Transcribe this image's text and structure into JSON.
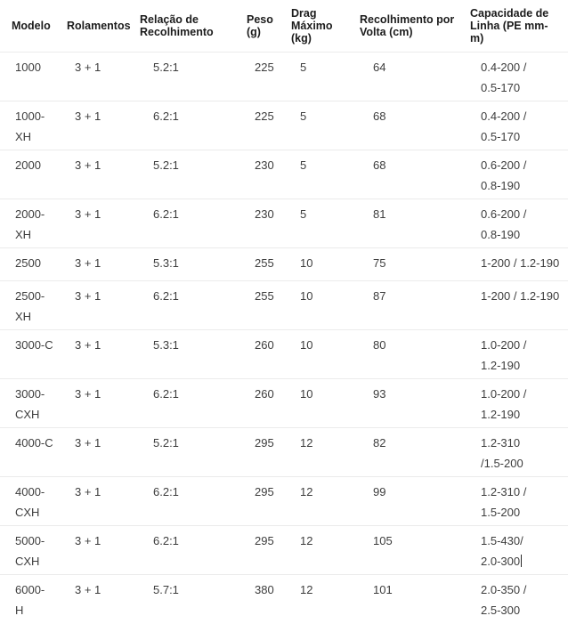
{
  "colors": {
    "background": "#ffffff",
    "row_border": "#ebebeb",
    "header_text": "#1c1c1c",
    "cell_text": "#3d3d3d",
    "text_cursor": "#2a2a2a"
  },
  "table": {
    "columns": [
      {
        "key": "model",
        "label": "Modelo"
      },
      {
        "key": "bearings",
        "label": "Rolamentos"
      },
      {
        "key": "gear_ratio",
        "label": "Relação de\nRecolhimento"
      },
      {
        "key": "weight",
        "label": "Peso\n(g)"
      },
      {
        "key": "max_drag",
        "label": "Drag\nMáximo\n(kg)"
      },
      {
        "key": "retrieve_per_turn",
        "label": "Recolhimento por\nVolta (cm)"
      },
      {
        "key": "line_capacity",
        "label": "Capacidade de\nLinha (PE mm-\nm)"
      }
    ],
    "rows": [
      {
        "model": "1000",
        "bearings": "3 + 1",
        "gear_ratio": "5.2:1",
        "weight": "225",
        "max_drag": "5",
        "retrieve_per_turn": "64",
        "line_capacity": "0.4-200 /\n0.5-170"
      },
      {
        "model": "1000-\nXH",
        "bearings": "3 + 1",
        "gear_ratio": "6.2:1",
        "weight": "225",
        "max_drag": "5",
        "retrieve_per_turn": "68",
        "line_capacity": "0.4-200 /\n0.5-170"
      },
      {
        "model": "2000",
        "bearings": "3 + 1",
        "gear_ratio": "5.2:1",
        "weight": "230",
        "max_drag": "5",
        "retrieve_per_turn": "68",
        "line_capacity": "0.6-200 /\n0.8-190"
      },
      {
        "model": "2000-\nXH",
        "bearings": "3 + 1",
        "gear_ratio": "6.2:1",
        "weight": "230",
        "max_drag": "5",
        "retrieve_per_turn": "81",
        "line_capacity": "0.6-200 /\n0.8-190"
      },
      {
        "model": "2500",
        "bearings": "3 + 1",
        "gear_ratio": "5.3:1",
        "weight": "255",
        "max_drag": "10",
        "retrieve_per_turn": "75",
        "line_capacity": "1-200 / 1.2-190",
        "compact": true
      },
      {
        "model": "2500-\nXH",
        "bearings": "3 + 1",
        "gear_ratio": "6.2:1",
        "weight": "255",
        "max_drag": "10",
        "retrieve_per_turn": "87",
        "line_capacity": "1-200 / 1.2-190"
      },
      {
        "model": "3000-C",
        "bearings": "3 + 1",
        "gear_ratio": "5.3:1",
        "weight": "260",
        "max_drag": "10",
        "retrieve_per_turn": "80",
        "line_capacity": "1.0-200 /\n1.2-190"
      },
      {
        "model": "3000-\nCXH",
        "bearings": "3 + 1",
        "gear_ratio": "6.2:1",
        "weight": "260",
        "max_drag": "10",
        "retrieve_per_turn": "93",
        "line_capacity": "1.0-200 /\n1.2-190"
      },
      {
        "model": "4000-C",
        "bearings": "3 + 1",
        "gear_ratio": "5.2:1",
        "weight": "295",
        "max_drag": "12",
        "retrieve_per_turn": "82",
        "line_capacity": "1.2-310\n/1.5-200"
      },
      {
        "model": "4000-\nCXH",
        "bearings": "3 + 1",
        "gear_ratio": "6.2:1",
        "weight": "295",
        "max_drag": "12",
        "retrieve_per_turn": "99",
        "line_capacity": "1.2-310 /\n1.5-200"
      },
      {
        "model": "5000-\nCXH",
        "bearings": "3 + 1",
        "gear_ratio": "6.2:1",
        "weight": "295",
        "max_drag": "12",
        "retrieve_per_turn": "105",
        "line_capacity": "1.5-430/\n2.0-300",
        "has_text_cursor": true
      },
      {
        "model": "6000-\nH",
        "bearings": "3 + 1",
        "gear_ratio": "5.7:1",
        "weight": "380",
        "max_drag": "12",
        "retrieve_per_turn": "101",
        "line_capacity": "2.0-350 /\n2.5-300"
      }
    ]
  }
}
